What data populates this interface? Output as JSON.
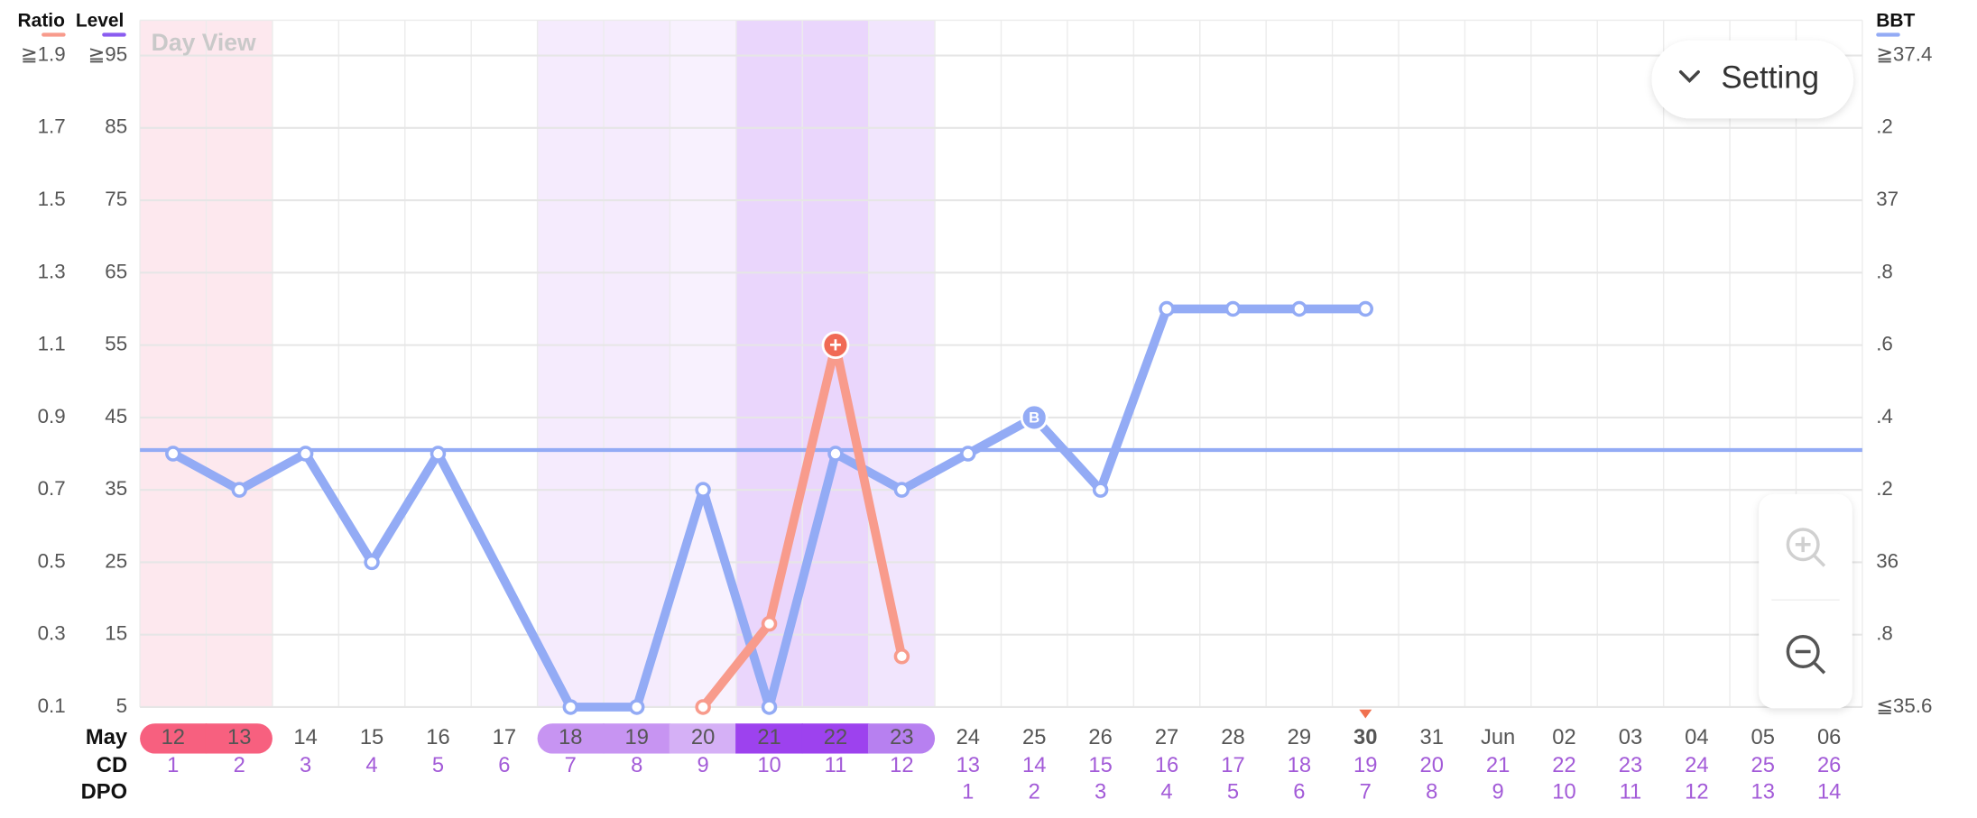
{
  "header": {
    "view_label": "Day View",
    "setting_button": "Setting"
  },
  "chart_data": {
    "type": "line",
    "level_label": "Level",
    "level_color": "#8a5cf0",
    "row_labels": {
      "month": "May",
      "cd": "CD",
      "dpo": "DPO"
    },
    "categories": [
      "12",
      "13",
      "14",
      "15",
      "16",
      "17",
      "18",
      "19",
      "20",
      "21",
      "22",
      "23",
      "24",
      "25",
      "26",
      "27",
      "28",
      "29",
      "30",
      "31",
      "Jun",
      "02",
      "03",
      "04",
      "05",
      "06"
    ],
    "cycle_days": [
      1,
      2,
      3,
      4,
      5,
      6,
      7,
      8,
      9,
      10,
      11,
      12,
      13,
      14,
      15,
      16,
      17,
      18,
      19,
      20,
      21,
      22,
      23,
      24,
      25,
      26
    ],
    "dpo": [
      null,
      null,
      null,
      null,
      null,
      null,
      null,
      null,
      null,
      null,
      null,
      null,
      1,
      2,
      3,
      4,
      5,
      6,
      7,
      8,
      9,
      10,
      11,
      12,
      13,
      14
    ],
    "day_types": [
      "period",
      "period",
      null,
      null,
      null,
      null,
      "fertile",
      "fertile",
      "fertile_light",
      "ovulation",
      "ovulation",
      "post",
      null,
      null,
      null,
      null,
      null,
      null,
      "today",
      null,
      null,
      null,
      null,
      null,
      null,
      null
    ],
    "ylim": [
      0.1,
      1.9
    ],
    "yticks": [
      {
        "value": 1.9,
        "label": "≧1.9"
      },
      1.7,
      1.5,
      1.3,
      1.1,
      0.9,
      0.7,
      0.5,
      0.3,
      0.1
    ],
    "level_lim": [
      5,
      95
    ],
    "level_ticks": [
      {
        "value": 95,
        "label": "≧95"
      },
      85,
      75,
      65,
      55,
      45,
      35,
      25,
      15,
      5
    ],
    "y2lim": [
      35.6,
      37.4
    ],
    "y2ticks": [
      {
        "value": 37.4,
        "label": "≧37.4"
      },
      {
        "value": 37.2,
        "label": ".2"
      },
      37,
      {
        "value": 36.8,
        "label": ".8"
      },
      {
        "value": 36.6,
        "label": ".6"
      },
      {
        "value": 36.4,
        "label": ".4"
      },
      {
        "value": 36.2,
        "label": ".2"
      },
      36,
      {
        "value": 35.8,
        "label": ".8"
      },
      {
        "value": 35.6,
        "label": "≦35.6"
      }
    ],
    "grid": true,
    "spanGaps": true,
    "cover_line": 36.31,
    "series": [
      {
        "name": "Ratio",
        "color": "#f89b8c",
        "axis": "y",
        "values": [
          null,
          null,
          null,
          null,
          null,
          null,
          null,
          null,
          0.1,
          0.33,
          1.1,
          0.24,
          null,
          null,
          null,
          null,
          null,
          null,
          null,
          null,
          null,
          null,
          null,
          null,
          null,
          null
        ],
        "point_labels": [
          null,
          null,
          null,
          null,
          null,
          null,
          null,
          null,
          null,
          null,
          "+",
          null,
          null,
          null,
          null,
          null,
          null,
          null,
          null,
          null,
          null,
          null,
          null,
          null,
          null,
          null
        ]
      },
      {
        "name": "BBT",
        "color": "#93abf5",
        "axis": "y2",
        "values": [
          36.3,
          36.2,
          36.3,
          36.0,
          36.3,
          null,
          35.6,
          35.6,
          36.2,
          35.6,
          36.3,
          36.2,
          36.3,
          36.4,
          36.2,
          36.7,
          36.7,
          36.7,
          36.7,
          null,
          null,
          null,
          null,
          null,
          null,
          null
        ],
        "point_labels": [
          null,
          null,
          null,
          null,
          null,
          null,
          null,
          null,
          null,
          null,
          null,
          null,
          null,
          "B",
          null,
          null,
          null,
          null,
          null,
          null,
          null,
          null,
          null,
          null,
          null,
          null
        ]
      }
    ]
  }
}
